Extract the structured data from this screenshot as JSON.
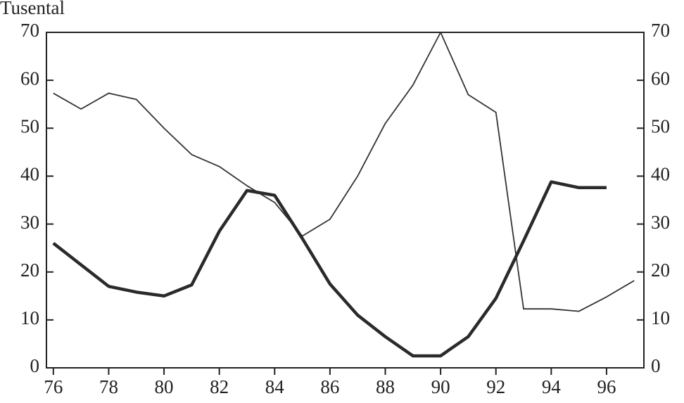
{
  "chart_data": {
    "type": "line",
    "title": "Tusental",
    "x": [
      76,
      77,
      78,
      79,
      80,
      81,
      82,
      83,
      84,
      85,
      86,
      87,
      88,
      89,
      90,
      91,
      92,
      93,
      94,
      95,
      96,
      97
    ],
    "series": [
      {
        "color": "#333333",
        "width": 1.8,
        "values": [
          57.3,
          54,
          57.3,
          56,
          50,
          44.5,
          42,
          38,
          34.5,
          27.5,
          31,
          40,
          51,
          59,
          70,
          57,
          53.3,
          12.3,
          12.3,
          11.8,
          14.8,
          18.2
        ]
      },
      {
        "color": "#2a2a2a",
        "width": 4.5,
        "values": [
          26,
          21.5,
          17,
          15.8,
          15,
          17.3,
          28.5,
          37,
          36,
          27,
          17.5,
          11,
          6.5,
          2.5,
          2.5,
          6.5,
          14.5,
          26.5,
          38.8,
          37.6,
          37.6,
          null
        ],
        "axis": "y2"
      }
    ],
    "xlim": [
      75.75,
      97.35
    ],
    "xticks": [
      76,
      78,
      80,
      82,
      84,
      86,
      88,
      90,
      92,
      94,
      96
    ],
    "ylim": [
      0,
      70
    ],
    "yticks": [
      0,
      10,
      20,
      30,
      40,
      50,
      60,
      70
    ],
    "y2lim": [
      0,
      70
    ],
    "y2ticks": [
      0,
      10,
      20,
      30,
      40,
      50,
      60,
      70
    ]
  }
}
